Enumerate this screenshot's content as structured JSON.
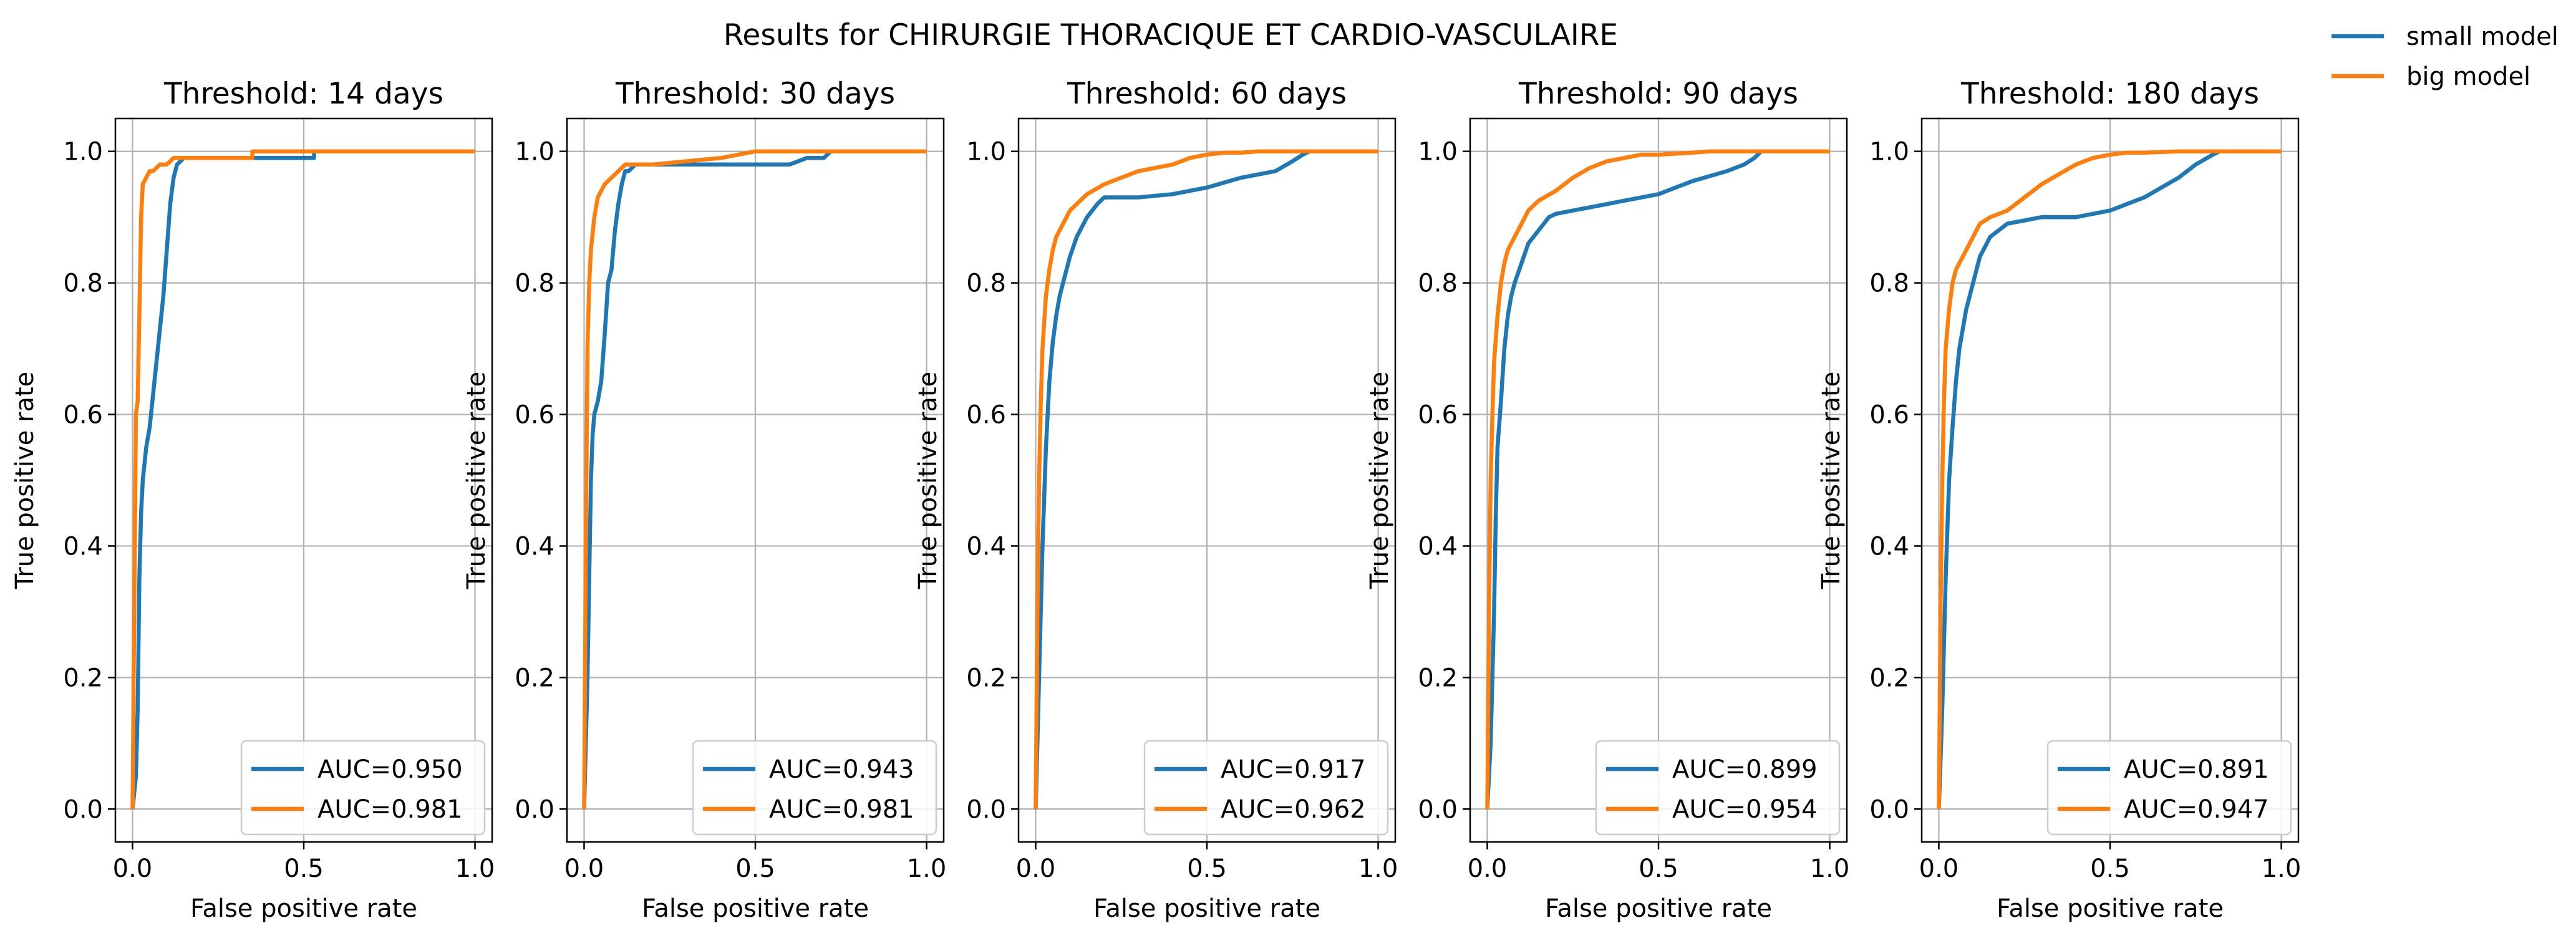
{
  "figure": {
    "suptitle": "Results for CHIRURGIE THORACIQUE ET CARDIO-VASCULAIRE",
    "legend_entries": [
      {
        "label": "small model",
        "color": "#1f77b4"
      },
      {
        "label": "big model",
        "color": "#ff7f0e"
      }
    ],
    "legend_placement": "top-right",
    "grid": true
  },
  "chart_data": [
    {
      "type": "line",
      "title": "Threshold: 14 days",
      "xlabel": "False positive rate",
      "ylabel": "True positive rate",
      "xlim": [
        -0.05,
        1.05
      ],
      "ylim": [
        -0.05,
        1.05
      ],
      "xticks": [
        "0.0",
        "0.5",
        "1.0"
      ],
      "yticks": [
        "0.0",
        "0.2",
        "0.4",
        "0.6",
        "0.8",
        "1.0"
      ],
      "series": [
        {
          "name": "small model",
          "auc_label": "AUC=0.950",
          "color": "#1f77b4",
          "x": [
            0.0,
            0.01,
            0.015,
            0.02,
            0.025,
            0.03,
            0.04,
            0.05,
            0.06,
            0.07,
            0.08,
            0.09,
            0.1,
            0.11,
            0.12,
            0.13,
            0.15,
            0.2,
            0.3,
            0.4,
            0.53,
            0.53,
            0.6,
            0.8,
            1.0
          ],
          "y": [
            0.0,
            0.05,
            0.15,
            0.35,
            0.45,
            0.5,
            0.55,
            0.58,
            0.63,
            0.68,
            0.73,
            0.78,
            0.85,
            0.92,
            0.96,
            0.98,
            0.99,
            0.99,
            0.99,
            0.99,
            0.99,
            1.0,
            1.0,
            1.0,
            1.0
          ]
        },
        {
          "name": "big model",
          "auc_label": "AUC=0.981",
          "color": "#ff7f0e",
          "x": [
            0.0,
            0.005,
            0.01,
            0.015,
            0.02,
            0.025,
            0.03,
            0.04,
            0.05,
            0.06,
            0.08,
            0.1,
            0.12,
            0.15,
            0.25,
            0.35,
            0.35,
            0.5,
            0.7,
            1.0
          ],
          "y": [
            0.0,
            0.3,
            0.6,
            0.62,
            0.75,
            0.9,
            0.95,
            0.96,
            0.97,
            0.97,
            0.98,
            0.98,
            0.99,
            0.99,
            0.99,
            0.99,
            1.0,
            1.0,
            1.0,
            1.0
          ]
        }
      ]
    },
    {
      "type": "line",
      "title": "Threshold: 30 days",
      "xlabel": "False positive rate",
      "ylabel": "True positive rate",
      "xlim": [
        -0.05,
        1.05
      ],
      "ylim": [
        -0.05,
        1.05
      ],
      "xticks": [
        "0.0",
        "0.5",
        "1.0"
      ],
      "yticks": [
        "0.0",
        "0.2",
        "0.4",
        "0.6",
        "0.8",
        "1.0"
      ],
      "series": [
        {
          "name": "small model",
          "auc_label": "AUC=0.943",
          "color": "#1f77b4",
          "x": [
            0.0,
            0.01,
            0.02,
            0.025,
            0.03,
            0.04,
            0.05,
            0.06,
            0.07,
            0.08,
            0.09,
            0.1,
            0.11,
            0.12,
            0.13,
            0.15,
            0.2,
            0.3,
            0.4,
            0.5,
            0.6,
            0.65,
            0.7,
            0.72,
            0.8,
            1.0
          ],
          "y": [
            0.0,
            0.2,
            0.5,
            0.57,
            0.6,
            0.62,
            0.65,
            0.72,
            0.8,
            0.82,
            0.88,
            0.92,
            0.95,
            0.97,
            0.97,
            0.98,
            0.98,
            0.98,
            0.98,
            0.98,
            0.98,
            0.99,
            0.99,
            1.0,
            1.0,
            1.0
          ]
        },
        {
          "name": "big model",
          "auc_label": "AUC=0.981",
          "color": "#ff7f0e",
          "x": [
            0.0,
            0.005,
            0.01,
            0.015,
            0.02,
            0.03,
            0.04,
            0.05,
            0.06,
            0.08,
            0.1,
            0.12,
            0.15,
            0.2,
            0.3,
            0.4,
            0.5,
            0.7,
            1.0
          ],
          "y": [
            0.0,
            0.4,
            0.7,
            0.8,
            0.85,
            0.9,
            0.93,
            0.94,
            0.95,
            0.96,
            0.97,
            0.98,
            0.98,
            0.98,
            0.985,
            0.99,
            1.0,
            1.0,
            1.0
          ]
        }
      ]
    },
    {
      "type": "line",
      "title": "Threshold: 60 days",
      "xlabel": "False positive rate",
      "ylabel": "True positive rate",
      "xlim": [
        -0.05,
        1.05
      ],
      "ylim": [
        -0.05,
        1.05
      ],
      "xticks": [
        "0.0",
        "0.5",
        "1.0"
      ],
      "yticks": [
        "0.0",
        "0.2",
        "0.4",
        "0.6",
        "0.8",
        "1.0"
      ],
      "series": [
        {
          "name": "small model",
          "auc_label": "AUC=0.917",
          "color": "#1f77b4",
          "x": [
            0.0,
            0.01,
            0.02,
            0.03,
            0.04,
            0.05,
            0.06,
            0.07,
            0.08,
            0.1,
            0.12,
            0.15,
            0.18,
            0.2,
            0.3,
            0.4,
            0.5,
            0.6,
            0.7,
            0.75,
            0.78,
            0.8,
            1.0
          ],
          "y": [
            0.0,
            0.2,
            0.4,
            0.55,
            0.65,
            0.71,
            0.75,
            0.78,
            0.8,
            0.84,
            0.87,
            0.9,
            0.92,
            0.93,
            0.93,
            0.935,
            0.945,
            0.96,
            0.97,
            0.985,
            0.995,
            1.0,
            1.0
          ]
        },
        {
          "name": "big model",
          "auc_label": "AUC=0.962",
          "color": "#ff7f0e",
          "x": [
            0.0,
            0.005,
            0.01,
            0.015,
            0.02,
            0.03,
            0.04,
            0.05,
            0.06,
            0.08,
            0.1,
            0.12,
            0.15,
            0.2,
            0.25,
            0.3,
            0.35,
            0.4,
            0.45,
            0.5,
            0.55,
            0.6,
            0.65,
            0.7,
            1.0
          ],
          "y": [
            0.0,
            0.3,
            0.5,
            0.62,
            0.7,
            0.78,
            0.82,
            0.85,
            0.87,
            0.89,
            0.91,
            0.92,
            0.935,
            0.95,
            0.96,
            0.97,
            0.975,
            0.98,
            0.99,
            0.995,
            0.998,
            0.998,
            1.0,
            1.0,
            1.0
          ]
        }
      ]
    },
    {
      "type": "line",
      "title": "Threshold: 90 days",
      "xlabel": "False positive rate",
      "ylabel": "True positive rate",
      "xlim": [
        -0.05,
        1.05
      ],
      "ylim": [
        -0.05,
        1.05
      ],
      "xticks": [
        "0.0",
        "0.5",
        "1.0"
      ],
      "yticks": [
        "0.0",
        "0.2",
        "0.4",
        "0.6",
        "0.8",
        "1.0"
      ],
      "series": [
        {
          "name": "small model",
          "auc_label": "AUC=0.899",
          "color": "#1f77b4",
          "x": [
            0.0,
            0.01,
            0.015,
            0.02,
            0.025,
            0.03,
            0.04,
            0.05,
            0.06,
            0.07,
            0.08,
            0.1,
            0.12,
            0.15,
            0.18,
            0.2,
            0.25,
            0.3,
            0.4,
            0.5,
            0.6,
            0.7,
            0.75,
            0.78,
            0.8,
            1.0
          ],
          "y": [
            0.0,
            0.1,
            0.2,
            0.3,
            0.45,
            0.55,
            0.62,
            0.7,
            0.75,
            0.78,
            0.8,
            0.83,
            0.86,
            0.88,
            0.9,
            0.905,
            0.91,
            0.915,
            0.925,
            0.935,
            0.955,
            0.97,
            0.98,
            0.99,
            1.0,
            1.0
          ]
        },
        {
          "name": "big model",
          "auc_label": "AUC=0.954",
          "color": "#ff7f0e",
          "x": [
            0.0,
            0.005,
            0.01,
            0.015,
            0.02,
            0.03,
            0.04,
            0.05,
            0.06,
            0.08,
            0.1,
            0.12,
            0.15,
            0.2,
            0.25,
            0.3,
            0.35,
            0.4,
            0.45,
            0.5,
            0.6,
            0.65,
            0.7,
            1.0
          ],
          "y": [
            0.0,
            0.3,
            0.5,
            0.6,
            0.68,
            0.75,
            0.8,
            0.83,
            0.85,
            0.87,
            0.89,
            0.91,
            0.925,
            0.94,
            0.96,
            0.975,
            0.985,
            0.99,
            0.995,
            0.995,
            0.998,
            1.0,
            1.0,
            1.0
          ]
        }
      ]
    },
    {
      "type": "line",
      "title": "Threshold: 180 days",
      "xlabel": "False positive rate",
      "ylabel": "True positive rate",
      "xlim": [
        -0.05,
        1.05
      ],
      "ylim": [
        -0.05,
        1.05
      ],
      "xticks": [
        "0.0",
        "0.5",
        "1.0"
      ],
      "yticks": [
        "0.0",
        "0.2",
        "0.4",
        "0.6",
        "0.8",
        "1.0"
      ],
      "series": [
        {
          "name": "small model",
          "auc_label": "AUC=0.891",
          "color": "#1f77b4",
          "x": [
            0.0,
            0.01,
            0.02,
            0.03,
            0.04,
            0.05,
            0.06,
            0.08,
            0.1,
            0.12,
            0.15,
            0.2,
            0.25,
            0.3,
            0.4,
            0.5,
            0.6,
            0.7,
            0.75,
            0.8,
            0.82,
            1.0
          ],
          "y": [
            0.0,
            0.15,
            0.35,
            0.5,
            0.58,
            0.65,
            0.7,
            0.76,
            0.8,
            0.84,
            0.87,
            0.89,
            0.895,
            0.9,
            0.9,
            0.91,
            0.93,
            0.96,
            0.98,
            0.995,
            1.0,
            1.0
          ]
        },
        {
          "name": "big model",
          "auc_label": "AUC=0.947",
          "color": "#ff7f0e",
          "x": [
            0.0,
            0.005,
            0.01,
            0.015,
            0.02,
            0.03,
            0.04,
            0.05,
            0.06,
            0.08,
            0.1,
            0.12,
            0.15,
            0.2,
            0.25,
            0.3,
            0.35,
            0.4,
            0.45,
            0.5,
            0.55,
            0.6,
            0.7,
            0.8,
            1.0
          ],
          "y": [
            0.0,
            0.3,
            0.5,
            0.62,
            0.7,
            0.76,
            0.8,
            0.82,
            0.83,
            0.85,
            0.87,
            0.89,
            0.9,
            0.91,
            0.93,
            0.95,
            0.965,
            0.98,
            0.99,
            0.995,
            0.998,
            0.998,
            1.0,
            1.0,
            1.0
          ]
        }
      ]
    }
  ]
}
